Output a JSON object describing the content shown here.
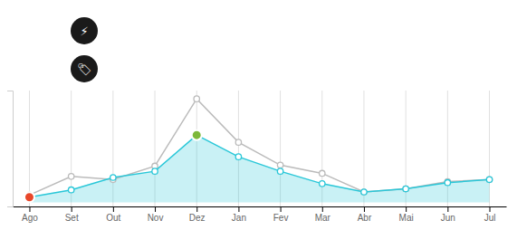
{
  "chart_data": {
    "type": "line",
    "categories": [
      "Ago",
      "Set",
      "Out",
      "Nov",
      "Dez",
      "Jan",
      "Fev",
      "Mar",
      "Abr",
      "Mai",
      "Jun",
      "Jul"
    ],
    "series": [
      {
        "color": "#BBBBBB",
        "marker": "circle",
        "values": [
          0.07,
          0.25,
          0.22,
          0.35,
          1.0,
          0.58,
          0.36,
          0.28,
          0.1,
          0.13,
          0.2,
          0.22
        ]
      },
      {
        "type": "area",
        "color": "#29C7D8",
        "marker": "circle",
        "colors": [
          "#E8472A",
          "#29C7D8",
          "#29C7D8",
          "#29C7D8",
          "#7DB83A",
          "#29C7D8",
          "#29C7D8",
          "#29C7D8",
          "#29C7D8",
          "#29C7D8",
          "#29C7D8",
          "#29C7D8"
        ],
        "values": [
          0.05,
          0.12,
          0.24,
          0.3,
          0.65,
          0.44,
          0.3,
          0.18,
          0.1,
          0.13,
          0.19,
          0.22
        ]
      }
    ],
    "ylim": [
      -0.04,
      1.08
    ],
    "yticks": [],
    "grid": true,
    "tick_labels": "x",
    "annotations": [
      "⚡",
      "🏷"
    ]
  }
}
